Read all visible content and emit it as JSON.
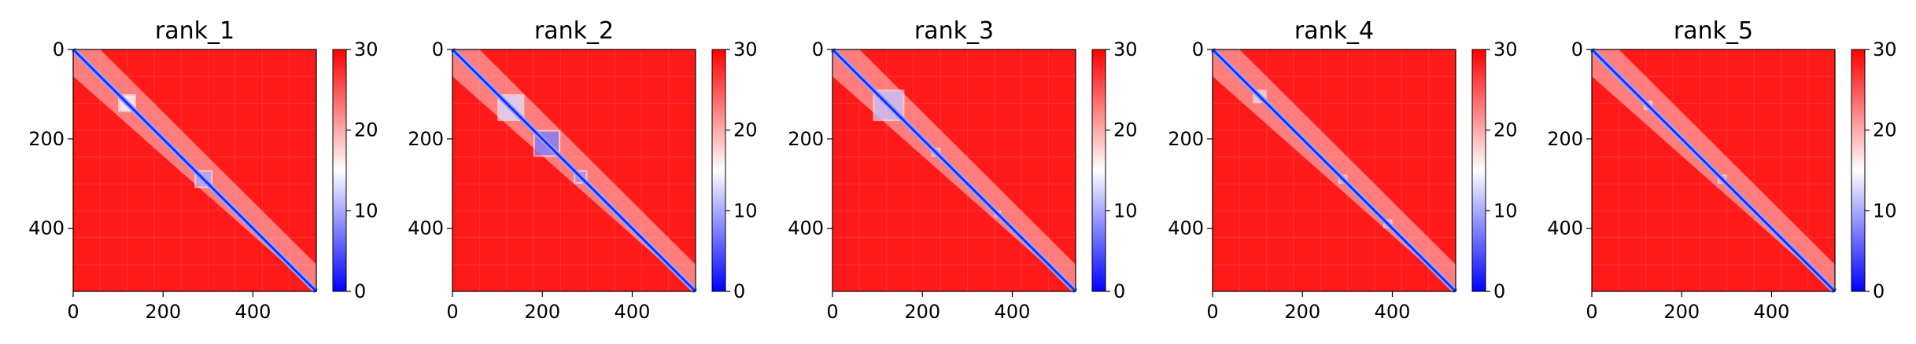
{
  "chart_data": [
    {
      "type": "heatmap",
      "title": "rank_1",
      "xlabel": "",
      "ylabel": "",
      "xlim": [
        0,
        541
      ],
      "ylim": [
        541,
        0
      ],
      "x_ticks": [
        "0",
        "200",
        "400"
      ],
      "y_ticks": [
        "0",
        "200",
        "400"
      ],
      "colorbar": {
        "range": [
          0,
          30
        ],
        "ticks": [
          "0",
          "10",
          "20",
          "30"
        ],
        "colors": [
          "#0000ff",
          "#ffffff",
          "#ff0000"
        ]
      },
      "low_value_blocks": [
        [
          100,
          140,
          15
        ],
        [
          270,
          310,
          8
        ],
        [
          225,
          235,
          5
        ]
      ]
    },
    {
      "type": "heatmap",
      "title": "rank_2",
      "xlabel": "",
      "ylabel": "",
      "xlim": [
        0,
        541
      ],
      "ylim": [
        541,
        0
      ],
      "x_ticks": [
        "0",
        "200",
        "400"
      ],
      "y_ticks": [
        "0",
        "200",
        "400"
      ],
      "colorbar": {
        "range": [
          0,
          30
        ],
        "ticks": [
          "0",
          "10",
          "20",
          "30"
        ],
        "colors": [
          "#0000ff",
          "#ffffff",
          "#ff0000"
        ]
      },
      "low_value_blocks": [
        [
          100,
          160,
          12
        ],
        [
          180,
          240,
          4
        ],
        [
          270,
          300,
          6
        ],
        [
          360,
          370,
          5
        ]
      ]
    },
    {
      "type": "heatmap",
      "title": "rank_3",
      "xlabel": "",
      "ylabel": "",
      "xlim": [
        0,
        541
      ],
      "ylim": [
        541,
        0
      ],
      "x_ticks": [
        "0",
        "200",
        "400"
      ],
      "y_ticks": [
        "0",
        "200",
        "400"
      ],
      "colorbar": {
        "range": [
          0,
          30
        ],
        "ticks": [
          "0",
          "10",
          "20",
          "30"
        ],
        "colors": [
          "#0000ff",
          "#ffffff",
          "#ff0000"
        ]
      },
      "low_value_blocks": [
        [
          90,
          160,
          10
        ],
        [
          220,
          240,
          6
        ],
        [
          360,
          375,
          5
        ]
      ]
    },
    {
      "type": "heatmap",
      "title": "rank_4",
      "xlabel": "",
      "ylabel": "",
      "xlim": [
        0,
        541
      ],
      "ylim": [
        541,
        0
      ],
      "x_ticks": [
        "0",
        "200",
        "400"
      ],
      "y_ticks": [
        "0",
        "200",
        "400"
      ],
      "colorbar": {
        "range": [
          0,
          30
        ],
        "ticks": [
          "0",
          "10",
          "20",
          "30"
        ],
        "colors": [
          "#0000ff",
          "#ffffff",
          "#ff0000"
        ]
      },
      "low_value_blocks": [
        [
          90,
          120,
          12
        ],
        [
          280,
          300,
          8
        ],
        [
          380,
          400,
          10
        ]
      ]
    },
    {
      "type": "heatmap",
      "title": "rank_5",
      "xlabel": "",
      "ylabel": "",
      "xlim": [
        0,
        541
      ],
      "ylim": [
        541,
        0
      ],
      "x_ticks": [
        "0",
        "200",
        "400"
      ],
      "y_ticks": [
        "0",
        "200",
        "400"
      ],
      "colorbar": {
        "range": [
          0,
          30
        ],
        "ticks": [
          "0",
          "10",
          "20",
          "30"
        ],
        "colors": [
          "#0000ff",
          "#ffffff",
          "#ff0000"
        ]
      },
      "low_value_blocks": [
        [
          115,
          135,
          10
        ],
        [
          280,
          300,
          8
        ],
        [
          360,
          370,
          6
        ]
      ]
    }
  ]
}
